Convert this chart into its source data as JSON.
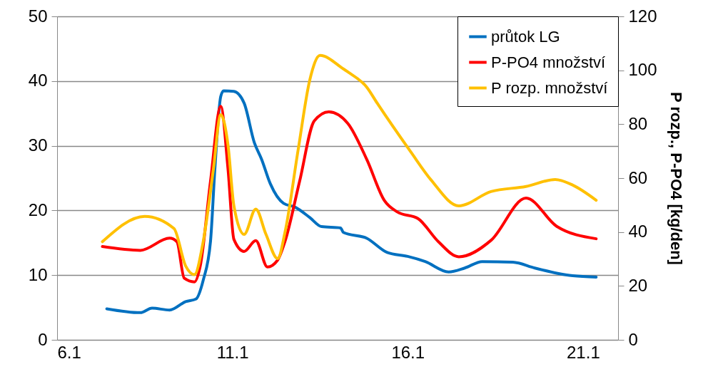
{
  "chart_data": {
    "type": "line",
    "y2label": "P rozp., P-PO4 [kg/den]",
    "xlim": [
      "--01-06",
      "--01-22"
    ],
    "xticks": [
      {
        "value": "--01-06",
        "label": "6.1"
      },
      {
        "value": "--01-11",
        "label": "11.1"
      },
      {
        "value": "--01-16",
        "label": "16.1"
      },
      {
        "value": "--01-21",
        "label": "21.1"
      }
    ],
    "ylim": [
      0,
      50
    ],
    "yticks": [
      0,
      10,
      20,
      30,
      40,
      50
    ],
    "y2lim": [
      0,
      120
    ],
    "y2ticks": [
      0,
      20,
      40,
      60,
      80,
      100,
      120
    ],
    "grid": "y",
    "legend": "top right",
    "marker": "none",
    "line_style": "solid",
    "series": [
      {
        "name": "průtok LG",
        "color": "#0070c0",
        "x": [
          "--01-07T10:00",
          "--01-08T09:00",
          "--01-08T17:00",
          "--01-09T05:00",
          "--01-09T16:00",
          "--01-09T23:00",
          "--01-10T04:00",
          "--01-10T09:00",
          "--01-10T12:00",
          "--01-10T16:00",
          "--01-10T18:00",
          "--01-11T01:00",
          "--01-11T08:00",
          "--01-11T15:00",
          "--01-11T20:00",
          "--01-12T02:00",
          "--01-12T11:00",
          "--01-12T19:00",
          "--01-13T05:00",
          "--01-13T13:00",
          "--01-14T02:00",
          "--01-14T04:00",
          "--01-14T20:00",
          "--01-15T10:00",
          "--01-16T00:00",
          "--01-16T12:00",
          "--01-17T04:00",
          "--01-17T15:00",
          "--01-18T03:00",
          "--01-19T00:00",
          "--01-19T15:00",
          "--01-20T06:00",
          "--01-20T17:00",
          "--01-21T09:00"
        ],
        "values": [
          4.8,
          4.2,
          4.9,
          4.6,
          5.9,
          6.3,
          9.2,
          15.2,
          26.4,
          37.6,
          38.5,
          38.4,
          36.6,
          30.5,
          27.9,
          24.1,
          21.1,
          20.5,
          18.9,
          17.5,
          17.3,
          16.6,
          15.7,
          13.5,
          12.9,
          12.1,
          10.5,
          11.1,
          12.1,
          12.0,
          11.1,
          10.3,
          9.9,
          9.7
        ]
      },
      {
        "name": "P-PO4 množství",
        "color": "#ff0000",
        "axis": "y2",
        "x": [
          "--01-07T07:00",
          "--01-08T09:00",
          "--01-09T05:00",
          "--01-09T10:00",
          "--01-09T15:00",
          "--01-09T22:00",
          "--01-10T02:00",
          "--01-10T09:00",
          "--01-10T16:00",
          "--01-10T21:00",
          "--01-11T01:00",
          "--01-11T08:00",
          "--01-11T16:00",
          "--01-12T00:00",
          "--01-12T07:00",
          "--01-12T12:00",
          "--01-12T22:00",
          "--01-13T08:00",
          "--01-13T18:00",
          "--01-14T07:00",
          "--01-14T20:00",
          "--01-15T08:00",
          "--01-15T17:00",
          "--01-16T07:00",
          "--01-16T21:00",
          "--01-17T11:00",
          "--01-18T09:00",
          "--01-19T09:00",
          "--01-20T06:00",
          "--01-21T09:00"
        ],
        "values": [
          34.6,
          33.2,
          37.7,
          36.4,
          22.9,
          21.5,
          27.4,
          58.8,
          86.6,
          63.3,
          37.3,
          32.8,
          36.8,
          27.0,
          29.6,
          36.5,
          58.8,
          81.2,
          84.6,
          80.3,
          66.9,
          51.7,
          47.4,
          45.0,
          36.4,
          30.8,
          36.9,
          52.6,
          42.1,
          37.5
        ]
      },
      {
        "name": "P rozp. množství",
        "color": "#ffc000",
        "axis": "y2",
        "x": [
          "--01-07T07:00",
          "--01-08T12:00",
          "--01-09T08:00",
          "--01-09T16:00",
          "--01-09T22:00",
          "--01-10T04:00",
          "--01-10T11:00",
          "--01-10T16:00",
          "--01-10T21:00",
          "--01-11T01:00",
          "--01-11T08:00",
          "--01-11T16:00",
          "--01-11T23:00",
          "--01-12T07:00",
          "--01-12T12:00",
          "--01-12T21:00",
          "--01-13T05:00",
          "--01-13T12:00",
          "--01-14T04:00",
          "--01-14T07:00",
          "--01-14T20:00",
          "--01-15T03:00",
          "--01-16T02:00",
          "--01-16T16:00",
          "--01-17T11:00",
          "--01-18T09:00",
          "--01-19T09:00",
          "--01-20T05:00",
          "--01-20T17:00",
          "--01-21T09:00"
        ],
        "values": [
          36.4,
          45.8,
          41.3,
          27.4,
          24.2,
          36.4,
          63.3,
          83.5,
          72.2,
          49.8,
          39.1,
          48.5,
          39.1,
          30.1,
          39.9,
          70.5,
          96.5,
          105.5,
          100.5,
          99.4,
          93.7,
          87.9,
          69.8,
          59.3,
          49.7,
          55.0,
          56.9,
          59.5,
          57.4,
          51.8
        ]
      }
    ]
  }
}
